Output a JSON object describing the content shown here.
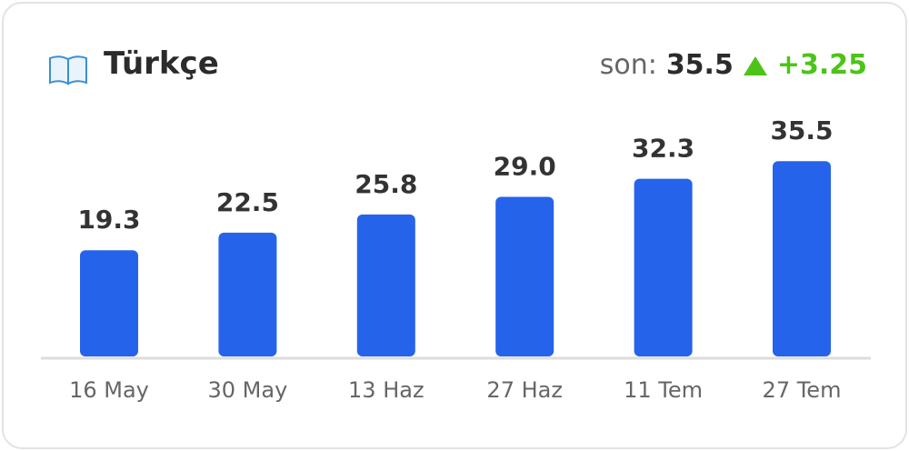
{
  "header": {
    "title": "Türkçe",
    "latest_label": "son:",
    "latest_value": "35.5",
    "change": "+3.25"
  },
  "chart_data": {
    "type": "bar",
    "categories": [
      "16 May",
      "30 May",
      "13 Haz",
      "27 Haz",
      "11 Tem",
      "27 Tem"
    ],
    "values": [
      19.3,
      22.5,
      25.8,
      29.0,
      32.3,
      35.5
    ],
    "value_labels": [
      "19.3",
      "22.5",
      "25.8",
      "29.0",
      "32.3",
      "35.5"
    ],
    "color": "#2563eb"
  }
}
